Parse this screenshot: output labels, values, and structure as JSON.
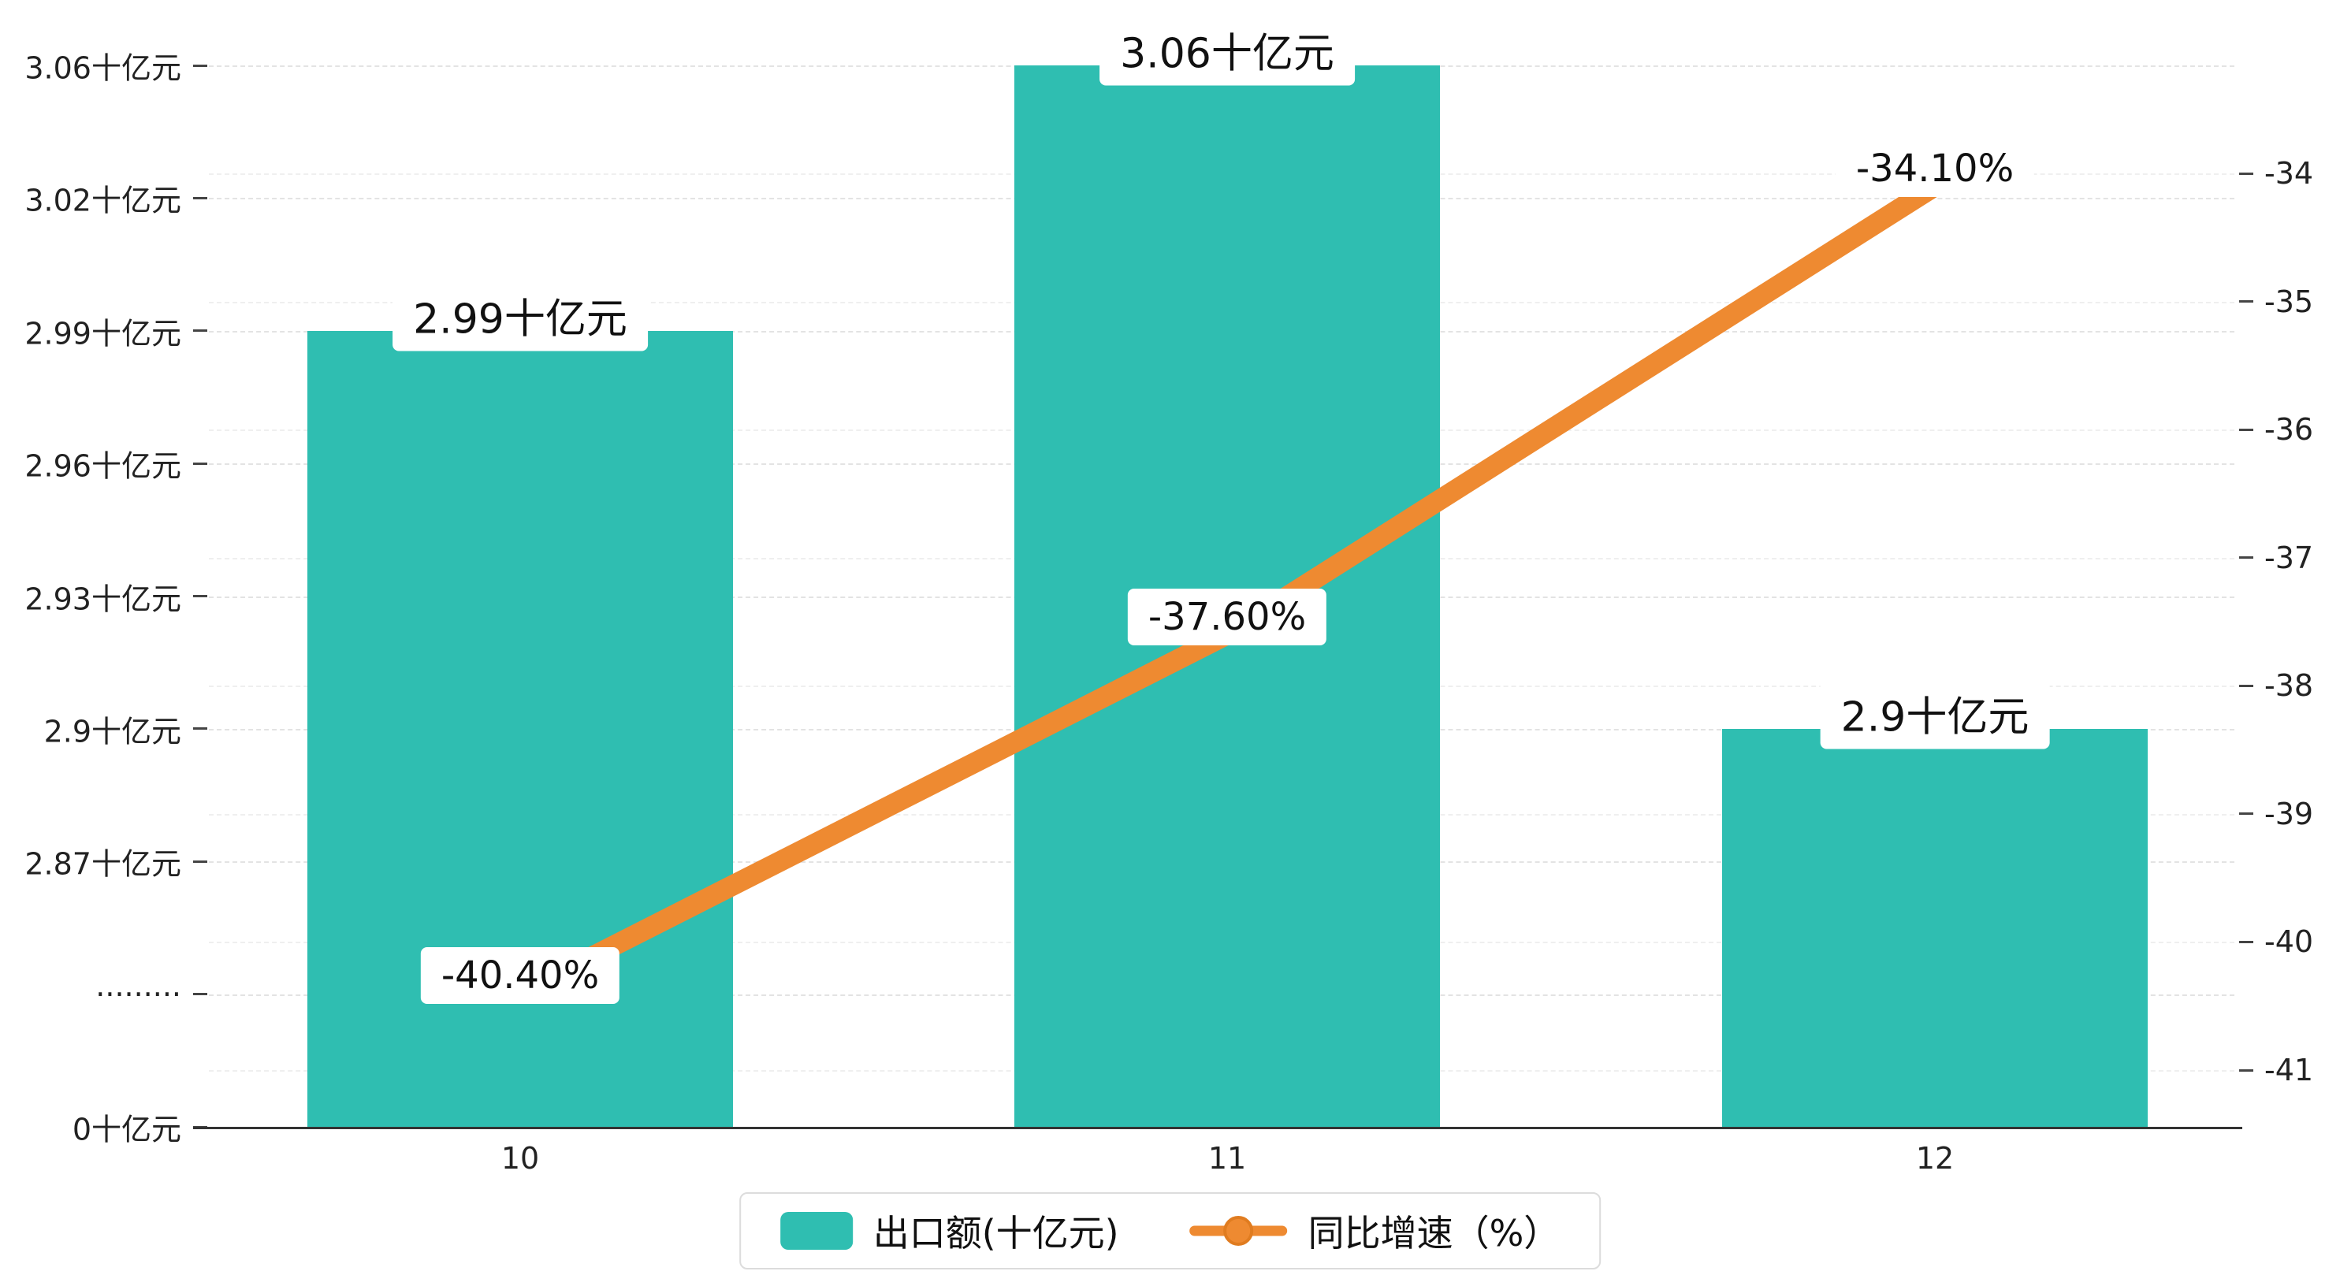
{
  "chart_data": {
    "type": "combo",
    "categories": [
      "10",
      "11",
      "12"
    ],
    "series": [
      {
        "name": "出口额(十亿元)",
        "type": "bar",
        "axis": "left",
        "color": "#2fbeb1",
        "values": [
          2.99,
          3.06,
          2.9
        ],
        "labels": [
          "2.99十亿元",
          "3.06十亿元",
          "2.9十亿元"
        ]
      },
      {
        "name": "同比增速（%）",
        "type": "line",
        "axis": "right",
        "color": "#ee8a31",
        "values": [
          -40.4,
          -37.6,
          -34.1
        ],
        "labels": [
          "-40.40%",
          "-37.60%",
          "-34.10%"
        ]
      }
    ],
    "left_axis": {
      "tick_labels": [
        "3.06十亿元",
        "3.02十亿元",
        "2.99十亿元",
        "2.96十亿元",
        "2.93十亿元",
        "2.9十亿元",
        "2.87十亿元",
        "·········",
        "0十亿元"
      ],
      "tick_values": [
        3.06,
        3.02,
        2.99,
        2.96,
        2.93,
        2.9,
        2.87,
        null,
        0
      ],
      "broken_axis": true
    },
    "right_axis": {
      "tick_labels": [
        "-34",
        "-35",
        "-36",
        "-37",
        "-38",
        "-39",
        "-40",
        "-41"
      ],
      "max": -34,
      "min": -41
    },
    "grid": "dashed",
    "legend_position": "bottom-center",
    "background": "#ffffff"
  }
}
